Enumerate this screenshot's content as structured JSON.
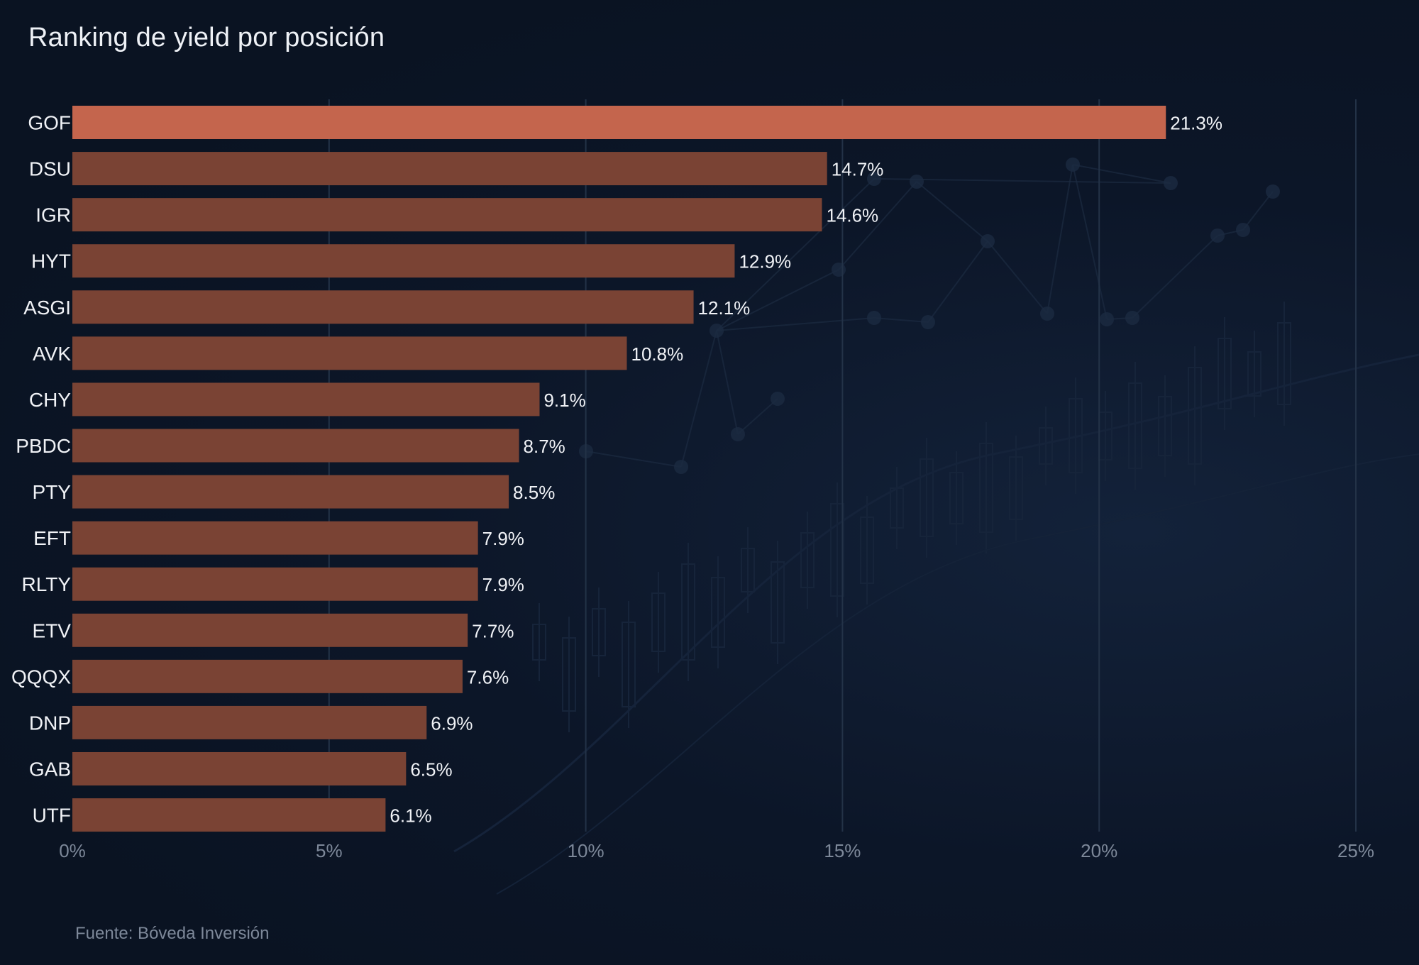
{
  "chart_data": {
    "type": "bar",
    "orientation": "horizontal",
    "title": "Ranking de yield por posición",
    "source": "Fuente: Bóveda Inversión",
    "xlabel": "",
    "ylabel": "",
    "xlim": [
      0,
      25
    ],
    "ticks": [
      0,
      5,
      10,
      15,
      20,
      25
    ],
    "tick_labels": [
      "0%",
      "5%",
      "10%",
      "15%",
      "20%",
      "25%"
    ],
    "grid": true,
    "categories": [
      "GOF",
      "DSU",
      "IGR",
      "HYT",
      "ASGI",
      "AVK",
      "CHY",
      "PBDC",
      "PTY",
      "EFT",
      "RLTY",
      "ETV",
      "QQQX",
      "DNP",
      "GAB",
      "UTF"
    ],
    "values": [
      21.3,
      14.7,
      14.6,
      12.9,
      12.1,
      10.8,
      9.1,
      8.7,
      8.5,
      7.9,
      7.9,
      7.7,
      7.6,
      6.9,
      6.5,
      6.1
    ],
    "value_labels": [
      "21.3%",
      "14.7%",
      "14.6%",
      "12.9%",
      "12.1%",
      "10.8%",
      "9.1%",
      "8.7%",
      "8.5%",
      "7.9%",
      "7.9%",
      "7.7%",
      "7.6%",
      "6.9%",
      "6.5%",
      "6.1%"
    ],
    "highlight_index": 0,
    "colors": {
      "highlight": "#c4654d",
      "bar": "#7a4334",
      "grid": "#233247",
      "background": "#0a1322"
    }
  }
}
